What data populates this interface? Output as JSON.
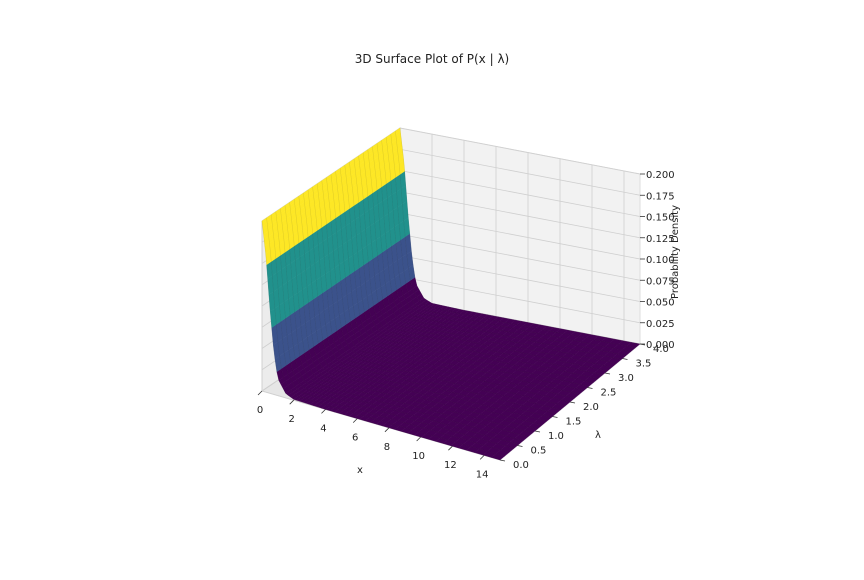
{
  "chart_data": {
    "type": "surface",
    "title": "3D Surface Plot of P(x | λ)",
    "xlabel": "x",
    "ylabel": "λ",
    "zlabel": "Probability Density",
    "xlim": [
      0,
      15
    ],
    "ylim": [
      0,
      4
    ],
    "zlim": [
      0,
      0.2
    ],
    "x_ticks": [
      "0",
      "2",
      "4",
      "6",
      "8",
      "10",
      "12",
      "14"
    ],
    "y_ticks": [
      "0.0",
      "0.5",
      "1.0",
      "1.5",
      "2.0",
      "2.5",
      "3.0",
      "3.5",
      "4.0"
    ],
    "z_ticks": [
      "0.000",
      "0.025",
      "0.050",
      "0.075",
      "0.100",
      "0.125",
      "0.150",
      "0.175",
      "0.200"
    ],
    "colormap": "viridis",
    "grid": true,
    "surface_profile": {
      "description_values": "z ≈ 0.2 near x=0 for all λ, decaying rapidly to ~0 by x≈1.5; flat ~0 for larger x",
      "x_samples": [
        0,
        0.25,
        0.5,
        0.75,
        1.0,
        1.5,
        2,
        4,
        8,
        15
      ],
      "z_samples": [
        0.2,
        0.16,
        0.1,
        0.05,
        0.02,
        0.005,
        0.001,
        0.0,
        0.0,
        0.0
      ]
    },
    "colors": {
      "yellow": "#fde725",
      "teal": "#21918c",
      "blue": "#3b528b",
      "purple": "#440154"
    }
  }
}
